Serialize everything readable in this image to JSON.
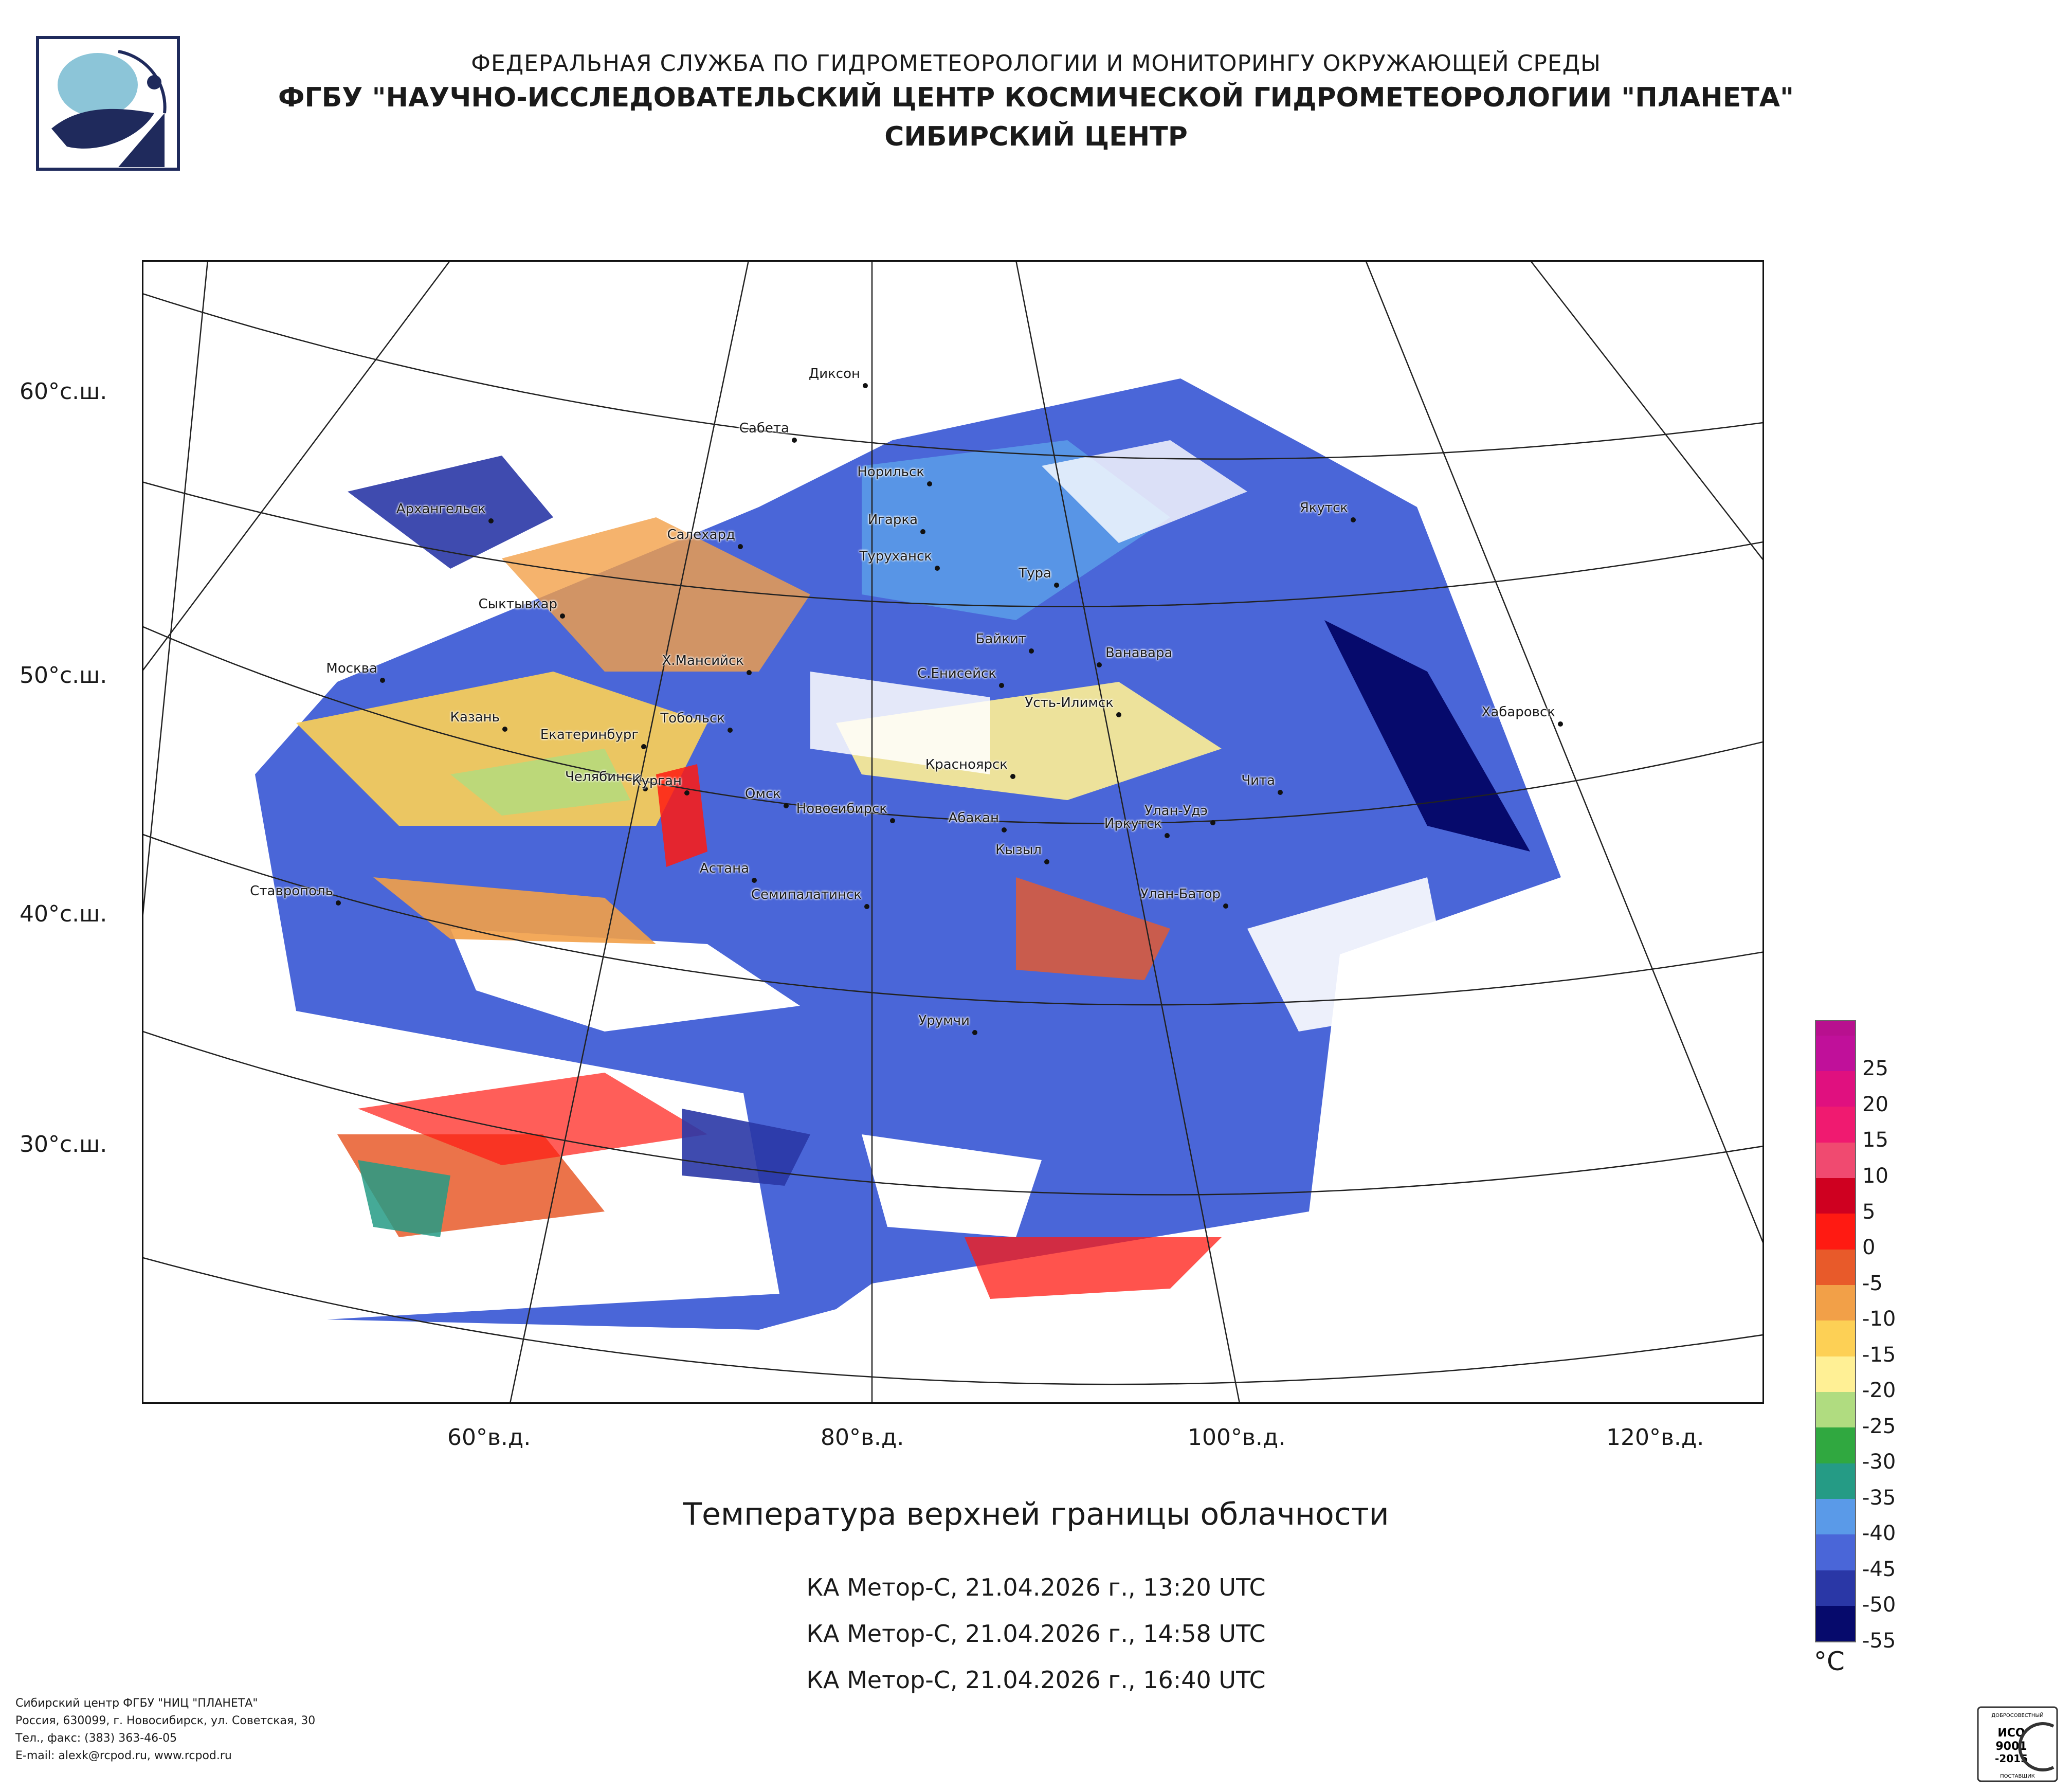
{
  "header": {
    "line1": "ФЕДЕРАЛЬНАЯ СЛУЖБА ПО ГИДРОМЕТЕОРОЛОГИИ И МОНИТОРИНГУ ОКРУЖАЮЩЕЙ СРЕДЫ",
    "line2": "ФГБУ \"НАУЧНО-ИССЛЕДОВАТЕЛЬСКИЙ ЦЕНТР КОСМИЧЕСКОЙ ГИДРОМЕТЕОРОЛОГИИ \"ПЛАНЕТА\"",
    "line3": "СИБИРСКИЙ ЦЕНТР"
  },
  "map": {
    "latitude_labels": [
      "60°с.ш.",
      "50°с.ш.",
      "40°с.ш.",
      "30°с.ш."
    ],
    "longitude_labels": [
      "60°в.д.",
      "80°в.д.",
      "100°в.д.",
      "120°в.д."
    ],
    "cities": [
      "Диксон",
      "Сабета",
      "Норильск",
      "Архангельск",
      "Игарка",
      "Салехард",
      "Туруханск",
      "Якутск",
      "Тура",
      "Сыктывкар",
      "Байкит",
      "Ванавара",
      "Москва",
      "Х.Мансийск",
      "С.Енисейск",
      "Усть-Илимск",
      "Хабаровск",
      "Казань",
      "Тобольск",
      "Екатеринбург",
      "Красноярск",
      "Челябинск",
      "Курган",
      "Чита",
      "Омск",
      "Новосибирск",
      "Абакан",
      "Улан-Удэ",
      "Иркутск",
      "Кызыл",
      "Астана",
      "Ставрополь",
      "Семипалатинск",
      "Улан-Батор",
      "Урумчи"
    ]
  },
  "title": "Температура верхней границы облачности",
  "passes": [
    "КА Метор-С, 21.04.2026 г., 13:20 UTC",
    "КА Метор-С, 21.04.2026 г., 14:58 UTC",
    "КА Метор-С, 21.04.2026 г., 16:40 UTC"
  ],
  "legend": {
    "unit": "°C",
    "labels": [
      "25",
      "20",
      "15",
      "10",
      "5",
      "0",
      "-5",
      "-10",
      "-15",
      "-20",
      "-25",
      "-30",
      "-35",
      "-40",
      "-45",
      "-50",
      "-55"
    ],
    "colors": [
      "#c0109a",
      "#e0107f",
      "#f01a70",
      "#f04a70",
      "#cf0020",
      "#ff1a12",
      "#e85a2a",
      "#f2a048",
      "#fdd055",
      "#fff095",
      "#b0dc80",
      "#30a840",
      "#259b85",
      "#5a9ae8",
      "#4a66d8",
      "#2a37a6",
      "#060a6c"
    ]
  },
  "footer": {
    "line1": "Сибирский центр ФГБУ \"НИЦ \"ПЛАНЕТА\"",
    "line2": "Россия, 630099, г. Новосибирск, ул. Советская, 30",
    "line3": "Тел., факс: (383) 363-46-05",
    "line4": "E-mail: alexk@rcpod.ru, www.rcpod.ru"
  },
  "iso_badge": {
    "top": "ДОБРОСОВЕСТНЫЙ",
    "l1": "ИСО",
    "l2": "9001",
    "l3": "-2015",
    "bottom": "ПОСТАВЩИК"
  }
}
